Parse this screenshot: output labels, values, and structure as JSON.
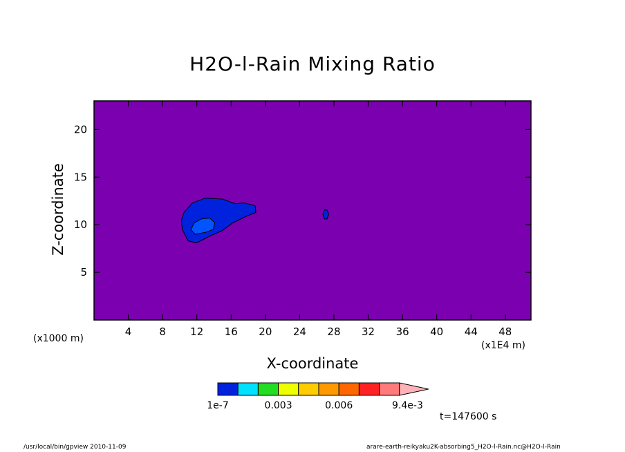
{
  "title": "H2O-l-Rain Mixing Ratio",
  "x_unit_note": "(x1000 m)",
  "x_unit_note_right": "(x1E4 m)",
  "time_label": "t=147600 s",
  "footer_left": "/usr/local/bin/gpview   2010-11-09",
  "footer_right": "arare-earth-reikyaku2K-absorbing5_H2O-l-Rain.nc@H2O-l-Rain",
  "chart_data": {
    "type": "heatmap",
    "title": "H2O-l-Rain Mixing Ratio",
    "xlabel": "X-coordinate",
    "ylabel": "Z-coordinate",
    "xlim": [
      0,
      51
    ],
    "ylim": [
      0,
      23
    ],
    "xticks": [
      4,
      8,
      12,
      16,
      20,
      24,
      28,
      32,
      36,
      40,
      44,
      48
    ],
    "yticks": [
      5,
      10,
      15,
      20
    ],
    "background_color": "#7b00b0",
    "contours": [
      {
        "name": "level1",
        "color": "#0022dd",
        "points": [
          [
            10.2,
            10.5
          ],
          [
            10.5,
            11.3
          ],
          [
            11.5,
            12.3
          ],
          [
            13,
            12.8
          ],
          [
            15,
            12.7
          ],
          [
            16.5,
            12.2
          ],
          [
            17.5,
            12.3
          ],
          [
            18.8,
            12
          ],
          [
            18.9,
            11.3
          ],
          [
            17.8,
            10.9
          ],
          [
            16.2,
            10.2
          ],
          [
            15,
            9.4
          ],
          [
            13.5,
            8.8
          ],
          [
            12,
            8.1
          ],
          [
            11,
            8.3
          ],
          [
            10.3,
            9.5
          ]
        ]
      },
      {
        "name": "level2",
        "color": "#0055ff",
        "points": [
          [
            11.3,
            9.5
          ],
          [
            11.7,
            10.2
          ],
          [
            12.5,
            10.6
          ],
          [
            13.5,
            10.7
          ],
          [
            14.1,
            10.2
          ],
          [
            13.9,
            9.5
          ],
          [
            13,
            9.2
          ],
          [
            11.8,
            9
          ]
        ]
      },
      {
        "name": "blob",
        "color": "#0022dd",
        "points": [
          [
            26.7,
            11.1
          ],
          [
            26.9,
            11.55
          ],
          [
            27.2,
            11.55
          ],
          [
            27.4,
            11.1
          ],
          [
            27.2,
            10.6
          ],
          [
            26.9,
            10.6
          ]
        ]
      }
    ],
    "colorbar": {
      "colors": [
        "#0022dd",
        "#00e0ff",
        "#22dd22",
        "#eeff00",
        "#ffcc00",
        "#ff9900",
        "#ff6600",
        "#ff2222",
        "#ff7a7a",
        "#ffb3b8"
      ],
      "labels": [
        "1e-7",
        "0.003",
        "0.006",
        "9.4e-3"
      ]
    }
  }
}
